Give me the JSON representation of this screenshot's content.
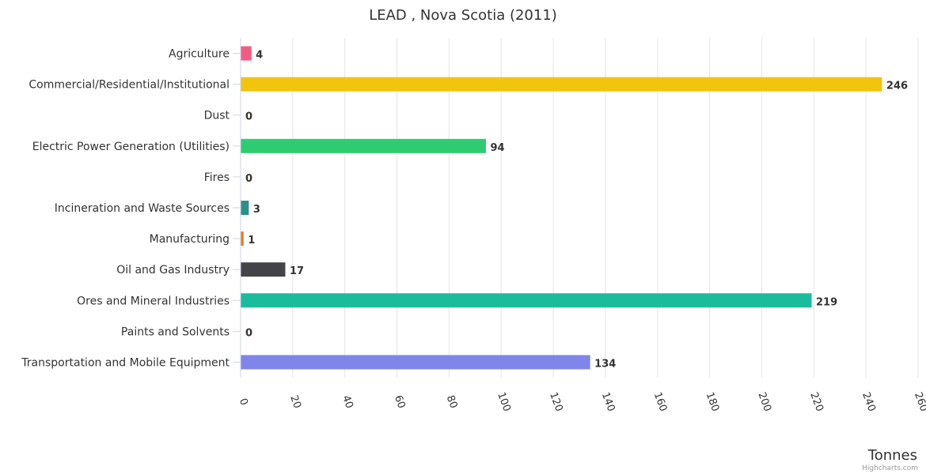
{
  "chart_data": {
    "type": "bar",
    "orientation": "horizontal",
    "title": "LEAD , Nova Scotia (2011)",
    "xlabel": "",
    "ylabel": "Tonnes",
    "categories": [
      "Agriculture",
      "Commercial/Residential/Institutional",
      "Dust",
      "Electric Power Generation (Utilities)",
      "Fires",
      "Incineration and Waste Sources",
      "Manufacturing",
      "Oil and Gas Industry",
      "Ores and Mineral Industries",
      "Paints and Solvents",
      "Transportation and Mobile Equipment"
    ],
    "values": [
      4,
      246,
      0,
      94,
      0,
      3,
      1,
      17,
      219,
      0,
      134
    ],
    "colors": [
      "#f45b82",
      "#f1c40f",
      "#2ecc71",
      "#2ecc71",
      "#2ecc71",
      "#2a9088",
      "#e67e22",
      "#434348",
      "#1abc9c",
      "#1abc9c",
      "#8085e9"
    ],
    "ylim": [
      0,
      260
    ],
    "ticks": [
      "0",
      "20",
      "40",
      "60",
      "80",
      "100",
      "120",
      "140",
      "160",
      "180",
      "200",
      "220",
      "240",
      "260"
    ],
    "tick_values": [
      0,
      20,
      40,
      60,
      80,
      100,
      120,
      140,
      160,
      180,
      200,
      220,
      240,
      260
    ],
    "grid": true,
    "legend": "none",
    "credits": "Highcharts.com"
  }
}
